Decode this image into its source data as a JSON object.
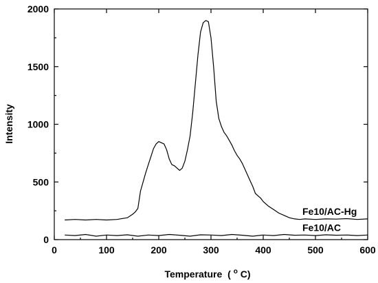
{
  "chart_data": {
    "type": "line",
    "title": "",
    "xlabel": "Temperature",
    "xlabel_unit_prefix": "(",
    "xlabel_unit_sup": "o",
    "xlabel_unit_suffix": "C)",
    "ylabel": "Intensity",
    "xlim": [
      0,
      600
    ],
    "ylim": [
      0,
      2000
    ],
    "x_ticks": [
      0,
      100,
      200,
      300,
      400,
      500,
      600
    ],
    "y_ticks": [
      0,
      500,
      1000,
      1500,
      2000
    ],
    "grid": false,
    "legend": "inline-right",
    "series": [
      {
        "name": "Fe10/AC-Hg",
        "x": [
          20,
          40,
          60,
          80,
          100,
          120,
          140,
          150,
          155,
          160,
          165,
          170,
          175,
          180,
          185,
          190,
          195,
          200,
          205,
          210,
          215,
          220,
          225,
          230,
          235,
          240,
          245,
          250,
          255,
          260,
          265,
          270,
          275,
          280,
          285,
          290,
          295,
          300,
          305,
          310,
          315,
          320,
          325,
          330,
          335,
          340,
          345,
          350,
          355,
          360,
          365,
          370,
          375,
          380,
          385,
          390,
          395,
          400,
          410,
          420,
          430,
          440,
          450,
          460,
          470,
          480,
          500,
          520,
          540,
          560,
          580,
          600
        ],
        "y": [
          170,
          175,
          170,
          175,
          170,
          175,
          190,
          220,
          240,
          270,
          420,
          500,
          580,
          650,
          720,
          790,
          830,
          850,
          840,
          830,
          780,
          700,
          650,
          640,
          620,
          600,
          620,
          680,
          780,
          900,
          1100,
          1350,
          1600,
          1800,
          1880,
          1900,
          1890,
          1750,
          1500,
          1200,
          1050,
          980,
          930,
          900,
          860,
          820,
          770,
          730,
          700,
          660,
          610,
          560,
          510,
          460,
          400,
          380,
          360,
          330,
          290,
          260,
          230,
          210,
          190,
          180,
          175,
          180,
          175,
          180,
          178,
          182,
          175,
          180
        ]
      },
      {
        "name": "Fe10/AC",
        "x": [
          20,
          40,
          60,
          80,
          100,
          120,
          140,
          160,
          180,
          200,
          220,
          240,
          260,
          280,
          300,
          320,
          340,
          360,
          380,
          400,
          420,
          440,
          460,
          480,
          500,
          520,
          540,
          560,
          580,
          600
        ],
        "y": [
          40,
          35,
          45,
          30,
          40,
          35,
          42,
          30,
          40,
          35,
          45,
          38,
          30,
          42,
          40,
          35,
          45,
          38,
          30,
          40,
          35,
          45,
          38,
          40,
          35,
          42,
          38,
          40,
          35,
          40
        ]
      }
    ]
  }
}
